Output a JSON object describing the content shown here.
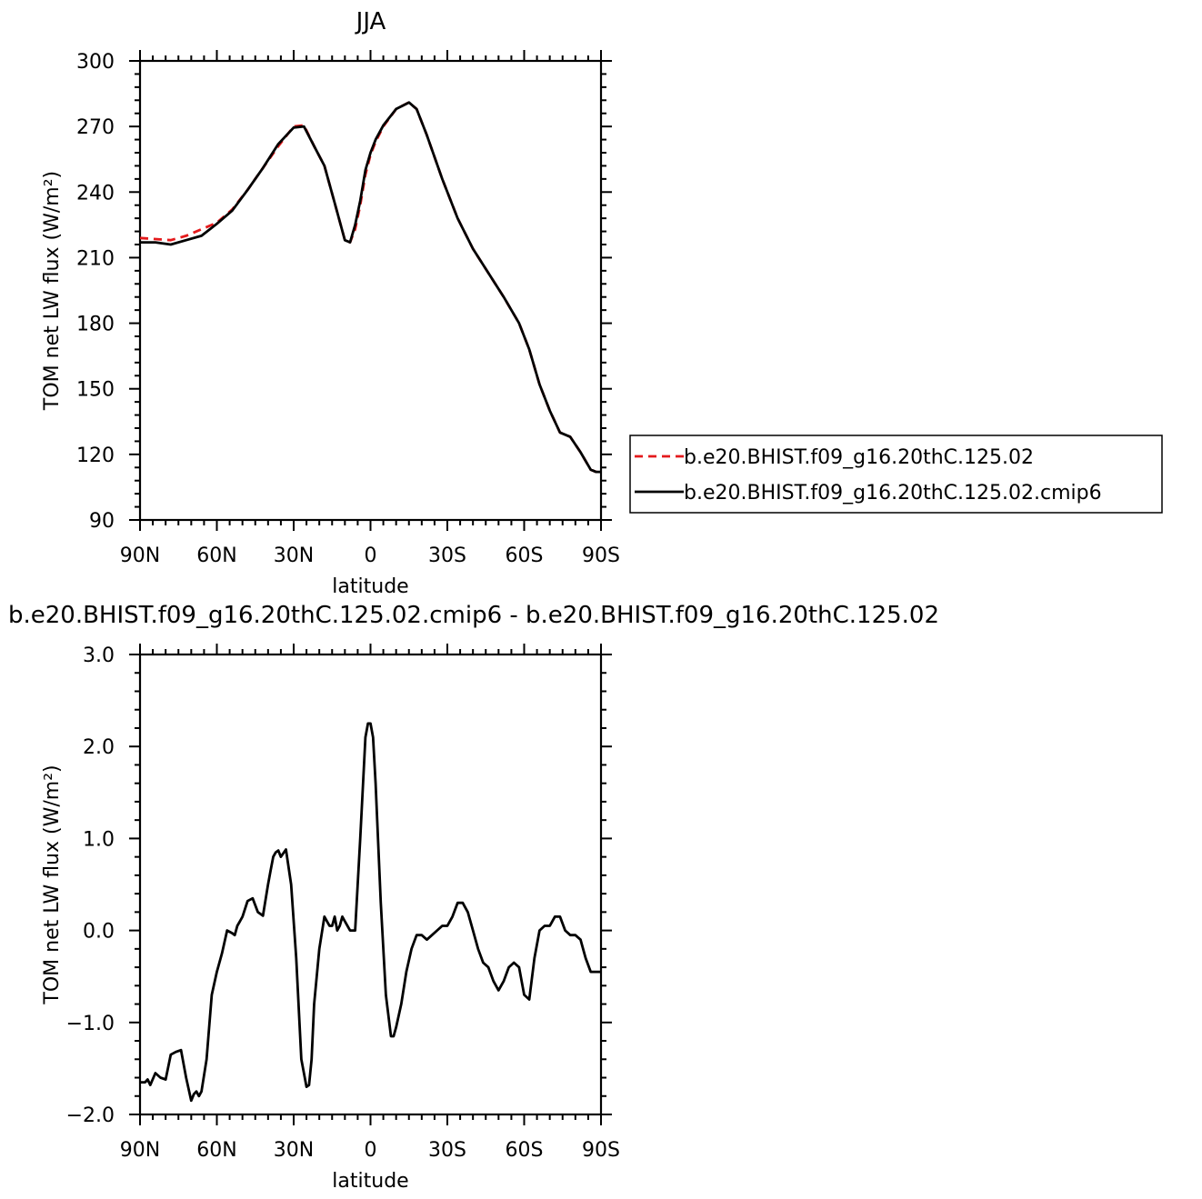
{
  "chart_data": [
    {
      "type": "line",
      "title": "JJA",
      "xlabel": "latitude",
      "ylabel": "TOM net LW flux (W/m²)",
      "xlim": [
        90,
        -90
      ],
      "ylim": [
        90,
        300
      ],
      "xticks": [
        90,
        60,
        30,
        0,
        -30,
        -60,
        -90
      ],
      "xtick_labels": [
        "90N",
        "60N",
        "30N",
        "0",
        "30S",
        "60S",
        "90S"
      ],
      "yticks": [
        90,
        120,
        150,
        180,
        210,
        240,
        270,
        300
      ],
      "ytick_labels": [
        "90",
        "120",
        "150",
        "180",
        "210",
        "240",
        "270",
        "300"
      ],
      "grid": false,
      "legend_position": "right, outside plot",
      "series": [
        {
          "name": "b.e20.BHIST.f09_g16.20thC.125.02",
          "color": "#e41a1c",
          "dash": "dashed",
          "x": [
            90,
            84,
            78,
            72,
            66,
            60,
            54,
            48,
            42,
            36,
            30,
            26,
            22,
            18,
            14,
            10,
            8,
            6,
            4,
            2,
            0,
            -2,
            -5,
            -10,
            -15,
            -18,
            -22,
            -28,
            -34,
            -40,
            -46,
            -52,
            -58,
            -62,
            -66,
            -70,
            -74,
            -78,
            -82,
            -86,
            -88,
            -90
          ],
          "y": [
            219,
            218.5,
            218,
            220,
            223,
            226,
            232,
            241,
            251,
            261,
            270,
            270.5,
            261,
            252,
            235,
            218,
            217,
            223,
            234,
            248,
            257,
            263,
            270,
            278,
            281,
            278,
            266,
            246,
            228,
            214,
            203,
            192,
            180,
            168,
            152,
            140,
            130,
            128,
            121,
            113,
            112,
            112
          ]
        },
        {
          "name": "b.e20.BHIST.f09_g16.20thC.125.02.cmip6",
          "color": "#000000",
          "dash": "solid",
          "x": [
            90,
            84,
            78,
            72,
            66,
            60,
            54,
            48,
            42,
            36,
            30,
            26,
            22,
            18,
            14,
            10,
            8,
            6,
            4,
            2,
            0,
            -2,
            -5,
            -10,
            -15,
            -18,
            -22,
            -28,
            -34,
            -40,
            -46,
            -52,
            -58,
            -62,
            -66,
            -70,
            -74,
            -78,
            -82,
            -86,
            -88,
            -90
          ],
          "y": [
            217,
            217,
            216,
            218,
            220,
            225.5,
            231.5,
            241,
            251,
            262,
            269.5,
            270,
            261,
            252,
            235,
            218,
            217,
            225,
            236,
            250,
            258,
            264,
            270.5,
            278,
            281,
            278,
            266,
            246,
            228,
            214,
            203,
            192,
            180,
            168,
            152,
            140,
            130,
            128,
            121,
            113,
            112,
            112
          ]
        }
      ]
    },
    {
      "type": "line",
      "title": "b.e20.BHIST.f09_g16.20thC.125.02.cmip6 - b.e20.BHIST.f09_g16.20thC.125.02",
      "xlabel": "latitude",
      "ylabel": "TOM net LW flux (W/m²)",
      "xlim": [
        90,
        -90
      ],
      "ylim": [
        -2.0,
        3.0
      ],
      "xticks": [
        90,
        60,
        30,
        0,
        -30,
        -60,
        -90
      ],
      "xtick_labels": [
        "90N",
        "60N",
        "30N",
        "0",
        "30S",
        "60S",
        "90S"
      ],
      "yticks": [
        -2.0,
        -1.0,
        0.0,
        1.0,
        2.0,
        3.0
      ],
      "ytick_labels": [
        "−2.0",
        "−1.0",
        "0.0",
        "1.0",
        "2.0",
        "3.0"
      ],
      "grid": false,
      "series": [
        {
          "color": "#000000",
          "dash": "solid",
          "x": [
            90,
            88,
            87,
            86,
            84,
            82,
            80,
            78,
            76,
            74,
            72,
            70,
            69,
            68,
            67,
            66,
            64,
            62,
            60,
            58,
            56,
            54,
            53,
            52,
            51,
            50,
            48,
            46,
            44,
            42,
            40,
            39,
            38,
            37,
            36,
            35,
            33,
            31,
            29,
            27,
            25,
            24,
            23,
            22,
            20,
            18,
            16,
            15,
            14,
            13,
            12,
            11,
            10,
            8,
            6,
            4,
            2,
            1,
            0,
            -1,
            -2,
            -4,
            -6,
            -8,
            -9,
            -10,
            -12,
            -14,
            -16,
            -18,
            -20,
            -22,
            -24,
            -26,
            -28,
            -30,
            -32,
            -34,
            -36,
            -38,
            -40,
            -42,
            -44,
            -46,
            -48,
            -50,
            -52,
            -54,
            -56,
            -58,
            -60,
            -62,
            -64,
            -66,
            -68,
            -70,
            -72,
            -74,
            -76,
            -78,
            -80,
            -82,
            -84,
            -86,
            -88,
            -90
          ],
          "y": [
            -1.65,
            -1.65,
            -1.62,
            -1.68,
            -1.55,
            -1.6,
            -1.62,
            -1.35,
            -1.32,
            -1.3,
            -1.6,
            -1.85,
            -1.78,
            -1.75,
            -1.8,
            -1.75,
            -1.4,
            -0.7,
            -0.45,
            -0.25,
            0.0,
            -0.03,
            -0.05,
            0.05,
            0.1,
            0.15,
            0.32,
            0.35,
            0.2,
            0.16,
            0.5,
            0.65,
            0.8,
            0.85,
            0.87,
            0.8,
            0.88,
            0.5,
            -0.3,
            -1.4,
            -1.7,
            -1.68,
            -1.4,
            -0.8,
            -0.2,
            0.15,
            0.05,
            0.05,
            0.15,
            0.0,
            0.05,
            0.15,
            0.1,
            0.0,
            0.0,
            1.0,
            2.1,
            2.25,
            2.25,
            2.1,
            1.6,
            0.3,
            -0.7,
            -1.15,
            -1.15,
            -1.05,
            -0.8,
            -0.45,
            -0.2,
            -0.05,
            -0.05,
            -0.1,
            -0.05,
            0.0,
            0.05,
            0.05,
            0.15,
            0.3,
            0.3,
            0.2,
            0.0,
            -0.2,
            -0.35,
            -0.4,
            -0.55,
            -0.65,
            -0.55,
            -0.4,
            -0.35,
            -0.4,
            -0.7,
            -0.75,
            -0.3,
            0.0,
            0.05,
            0.05,
            0.15,
            0.15,
            0.0,
            -0.05,
            -0.05,
            -0.1,
            -0.3,
            -0.45,
            -0.45,
            -0.45
          ]
        }
      ]
    }
  ]
}
